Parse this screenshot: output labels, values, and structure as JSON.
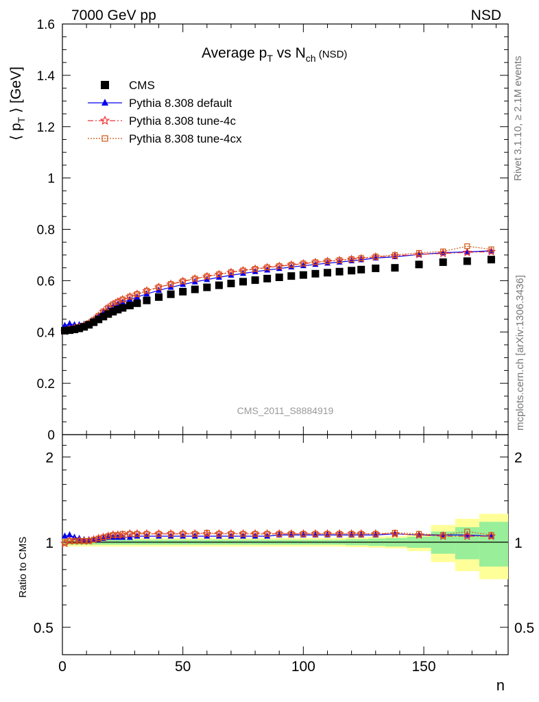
{
  "header": {
    "left": "7000 GeV pp",
    "right": "NSD"
  },
  "side_text": {
    "top": "Rivet 3.1.10, ≥ 2.1M events",
    "bottom": "mcplots.cern.ch [arXiv:1306.3436]"
  },
  "chart_data": [
    {
      "type": "scatter",
      "title": "Average p",
      "title_sub1": "T",
      "title_mid": " vs N",
      "title_sub2": "ch",
      "title_suffix": " (NSD)",
      "ylabel": "⟨ p",
      "ylabel_sub": "T",
      "ylabel_suffix": " ⟩ [GeV]",
      "watermark": "CMS_2011_S8884919",
      "xlim": [
        0,
        185
      ],
      "ylim": [
        0,
        1.6
      ],
      "yticks": [
        "0",
        "0.2",
        "0.4",
        "0.6",
        "0.8",
        "1",
        "1.2",
        "1.4",
        "1.6"
      ],
      "legend_position": "top-left",
      "series": [
        {
          "name": "CMS",
          "color": "#000000",
          "marker": "square",
          "x": [
            1,
            3,
            5,
            7,
            9,
            11,
            13,
            15,
            17,
            19,
            21,
            23,
            25,
            28,
            31,
            35,
            40,
            45,
            50,
            55,
            60,
            65,
            70,
            75,
            80,
            85,
            90,
            95,
            100,
            105,
            110,
            115,
            120,
            124,
            130,
            138,
            148,
            158,
            168,
            178
          ],
          "y": [
            0.405,
            0.407,
            0.41,
            0.414,
            0.42,
            0.428,
            0.438,
            0.449,
            0.46,
            0.47,
            0.479,
            0.487,
            0.494,
            0.503,
            0.512,
            0.523,
            0.536,
            0.547,
            0.557,
            0.566,
            0.574,
            0.582,
            0.589,
            0.596,
            0.602,
            0.608,
            0.613,
            0.618,
            0.622,
            0.627,
            0.631,
            0.635,
            0.639,
            0.643,
            0.648,
            0.65,
            0.663,
            0.672,
            0.676,
            0.682
          ]
        },
        {
          "name": "Pythia 8.308 default",
          "color": "#0000ee",
          "marker": "triangle",
          "line": "solid",
          "x": [
            1,
            3,
            5,
            7,
            9,
            11,
            13,
            15,
            17,
            19,
            21,
            23,
            25,
            28,
            31,
            35,
            40,
            45,
            50,
            55,
            60,
            65,
            70,
            75,
            80,
            85,
            90,
            95,
            100,
            105,
            110,
            115,
            120,
            124,
            130,
            138,
            148,
            158,
            168,
            178
          ],
          "y": [
            0.425,
            0.432,
            0.428,
            0.428,
            0.43,
            0.436,
            0.447,
            0.46,
            0.475,
            0.488,
            0.5,
            0.509,
            0.516,
            0.526,
            0.536,
            0.548,
            0.562,
            0.574,
            0.585,
            0.595,
            0.604,
            0.613,
            0.621,
            0.628,
            0.635,
            0.641,
            0.647,
            0.653,
            0.658,
            0.663,
            0.668,
            0.672,
            0.677,
            0.681,
            0.688,
            0.693,
            0.702,
            0.709,
            0.712,
            0.716
          ]
        },
        {
          "name": "Pythia 8.308 tune-4c",
          "color": "#ee3333",
          "marker": "star",
          "line": "dashdot",
          "x": [
            1,
            3,
            5,
            7,
            9,
            11,
            13,
            15,
            17,
            19,
            21,
            23,
            25,
            28,
            31,
            35,
            40,
            45,
            50,
            55,
            60,
            65,
            70,
            75,
            80,
            85,
            90,
            95,
            100,
            105,
            110,
            115,
            120,
            124,
            130,
            138,
            148,
            158,
            168,
            178
          ],
          "y": [
            0.403,
            0.41,
            0.414,
            0.418,
            0.424,
            0.433,
            0.446,
            0.462,
            0.479,
            0.494,
            0.507,
            0.517,
            0.526,
            0.537,
            0.547,
            0.56,
            0.574,
            0.586,
            0.597,
            0.607,
            0.616,
            0.624,
            0.632,
            0.639,
            0.645,
            0.651,
            0.656,
            0.661,
            0.666,
            0.671,
            0.675,
            0.679,
            0.683,
            0.686,
            0.692,
            0.697,
            0.702,
            0.706,
            0.71,
            0.713
          ]
        },
        {
          "name": "Pythia 8.308 tune-4cx",
          "color": "#cc5511",
          "marker": "open-square",
          "line": "dotted",
          "x": [
            1,
            3,
            5,
            7,
            9,
            11,
            13,
            15,
            17,
            19,
            21,
            23,
            25,
            28,
            31,
            35,
            40,
            45,
            50,
            55,
            60,
            65,
            70,
            75,
            80,
            85,
            90,
            95,
            100,
            105,
            110,
            115,
            120,
            124,
            130,
            138,
            148,
            158,
            168,
            178
          ],
          "y": [
            0.404,
            0.411,
            0.415,
            0.419,
            0.425,
            0.434,
            0.447,
            0.463,
            0.48,
            0.495,
            0.508,
            0.518,
            0.527,
            0.538,
            0.548,
            0.561,
            0.575,
            0.587,
            0.598,
            0.608,
            0.617,
            0.625,
            0.633,
            0.64,
            0.646,
            0.652,
            0.657,
            0.662,
            0.667,
            0.672,
            0.676,
            0.68,
            0.684,
            0.688,
            0.694,
            0.7,
            0.708,
            0.714,
            0.734,
            0.722
          ]
        }
      ]
    },
    {
      "type": "scatter",
      "ylabel": "Ratio to CMS",
      "xlabel": "n",
      "xlim": [
        0,
        185
      ],
      "ylim": [
        0.4,
        2.4
      ],
      "log_y": true,
      "xticks": [
        "0",
        "50",
        "100",
        "150"
      ],
      "yticks": [
        "0.5",
        "1",
        "2"
      ],
      "bands": {
        "x": [
          1,
          3,
          5,
          7,
          9,
          11,
          13,
          15,
          17,
          19,
          21,
          23,
          25,
          28,
          31,
          35,
          40,
          45,
          50,
          55,
          60,
          65,
          70,
          75,
          80,
          85,
          90,
          95,
          100,
          105,
          110,
          115,
          120,
          124,
          130,
          138,
          148,
          158,
          168,
          178
        ],
        "half_width": [
          0.02,
          0.02,
          0.02,
          0.02,
          0.02,
          0.02,
          0.02,
          0.02,
          0.02,
          0.02,
          0.02,
          0.02,
          0.02,
          0.02,
          0.02,
          0.02,
          0.02,
          0.02,
          0.02,
          0.02,
          0.02,
          0.02,
          0.02,
          0.02,
          0.02,
          0.02,
          0.02,
          0.02,
          0.02,
          0.02,
          0.02,
          0.02,
          0.025,
          0.025,
          0.03,
          0.035,
          0.045,
          0.09,
          0.13,
          0.18
        ],
        "half_width_outer": [
          0.035,
          0.035,
          0.035,
          0.035,
          0.035,
          0.035,
          0.035,
          0.035,
          0.035,
          0.035,
          0.035,
          0.035,
          0.035,
          0.035,
          0.035,
          0.035,
          0.035,
          0.035,
          0.035,
          0.035,
          0.035,
          0.035,
          0.035,
          0.035,
          0.035,
          0.035,
          0.035,
          0.035,
          0.035,
          0.035,
          0.035,
          0.035,
          0.04,
          0.04,
          0.045,
          0.05,
          0.07,
          0.15,
          0.21,
          0.26
        ]
      },
      "series": [
        {
          "name": "Pythia 8.308 default",
          "color": "#0000ee",
          "marker": "triangle",
          "line": "solid",
          "x": [
            1,
            3,
            5,
            7,
            9,
            11,
            13,
            15,
            17,
            19,
            21,
            23,
            25,
            28,
            31,
            35,
            40,
            45,
            50,
            55,
            60,
            65,
            70,
            75,
            80,
            85,
            90,
            95,
            100,
            105,
            110,
            115,
            120,
            124,
            130,
            138,
            148,
            158,
            168,
            178
          ],
          "y": [
            1.05,
            1.06,
            1.04,
            1.03,
            1.02,
            1.02,
            1.02,
            1.02,
            1.03,
            1.04,
            1.04,
            1.04,
            1.04,
            1.04,
            1.05,
            1.05,
            1.05,
            1.05,
            1.05,
            1.05,
            1.05,
            1.05,
            1.05,
            1.05,
            1.05,
            1.05,
            1.06,
            1.06,
            1.06,
            1.06,
            1.06,
            1.06,
            1.06,
            1.06,
            1.06,
            1.07,
            1.06,
            1.06,
            1.06,
            1.05
          ]
        },
        {
          "name": "Pythia 8.308 tune-4c",
          "color": "#ee3333",
          "marker": "star",
          "line": "dashdot",
          "x": [
            1,
            3,
            5,
            7,
            9,
            11,
            13,
            15,
            17,
            19,
            21,
            23,
            25,
            28,
            31,
            35,
            40,
            45,
            50,
            55,
            60,
            65,
            70,
            75,
            80,
            85,
            90,
            95,
            100,
            105,
            110,
            115,
            120,
            124,
            130,
            138,
            148,
            158,
            168,
            178
          ],
          "y": [
            0.99,
            1.01,
            1.01,
            1.01,
            1.01,
            1.01,
            1.02,
            1.03,
            1.04,
            1.05,
            1.06,
            1.06,
            1.06,
            1.07,
            1.07,
            1.07,
            1.07,
            1.07,
            1.07,
            1.07,
            1.07,
            1.07,
            1.07,
            1.07,
            1.07,
            1.07,
            1.07,
            1.07,
            1.07,
            1.07,
            1.07,
            1.07,
            1.07,
            1.07,
            1.07,
            1.07,
            1.06,
            1.05,
            1.05,
            1.05
          ]
        },
        {
          "name": "Pythia 8.308 tune-4cx",
          "color": "#cc5511",
          "marker": "open-square",
          "line": "dotted",
          "x": [
            1,
            3,
            5,
            7,
            9,
            11,
            13,
            15,
            17,
            19,
            21,
            23,
            25,
            28,
            31,
            35,
            40,
            45,
            50,
            55,
            60,
            65,
            70,
            75,
            80,
            85,
            90,
            95,
            100,
            105,
            110,
            115,
            120,
            124,
            130,
            138,
            148,
            158,
            168,
            178
          ],
          "y": [
            1.0,
            1.01,
            1.01,
            1.01,
            1.01,
            1.01,
            1.02,
            1.03,
            1.04,
            1.05,
            1.06,
            1.06,
            1.07,
            1.07,
            1.07,
            1.07,
            1.07,
            1.07,
            1.07,
            1.07,
            1.08,
            1.07,
            1.07,
            1.07,
            1.07,
            1.07,
            1.07,
            1.07,
            1.07,
            1.07,
            1.07,
            1.07,
            1.07,
            1.07,
            1.07,
            1.08,
            1.07,
            1.06,
            1.09,
            1.06
          ]
        }
      ]
    }
  ]
}
